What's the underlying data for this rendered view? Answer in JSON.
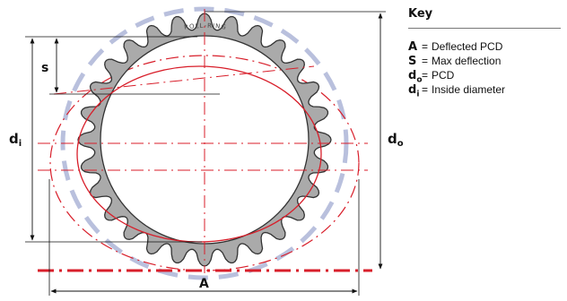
{
  "ring_text": "ROLL-RING",
  "labels": {
    "s": "s",
    "di_main": "d",
    "di_sub": "i",
    "do_main": "d",
    "do_sub": "o",
    "A": "A"
  },
  "key": {
    "title": "Key",
    "items": [
      {
        "symbol": "A",
        "sub": "",
        "eq": "=",
        "text": "Deflected PCD"
      },
      {
        "symbol": "S",
        "sub": "",
        "eq": "=",
        "text": "Max deflection"
      },
      {
        "symbol": "d",
        "sub": "o",
        "eq": "=",
        "text": "PCD"
      },
      {
        "symbol": "d",
        "sub": "i",
        "eq": "=",
        "text": "Inside diameter"
      }
    ]
  },
  "colors": {
    "ring_fill": "#aaaaaa",
    "ring_outline": "#333333",
    "accent_red": "#d81e2a",
    "ghost_blue": "#b9c0dd",
    "dimension_line": "#111111"
  }
}
